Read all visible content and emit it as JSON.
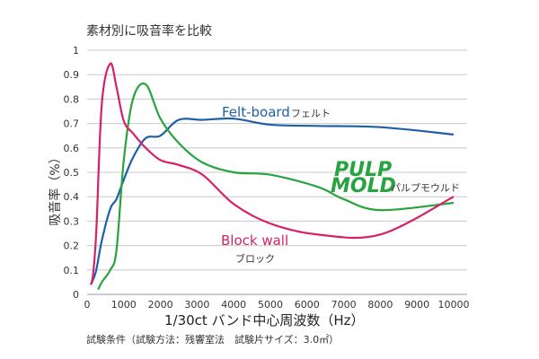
{
  "chart_data": {
    "type": "line",
    "title": "素材別に吸音率を比較",
    "xlabel": "1/30ct バンド中心周波数（Hz）",
    "ylabel": "吸音率（%）",
    "footnote": "試験条件（試験方法：残響室法　試験片サイズ：3.0㎡）",
    "xlim": [
      0,
      10000
    ],
    "ylim": [
      0,
      1
    ],
    "xticks": [
      "0",
      "1000",
      "2000",
      "3000",
      "4000",
      "5000",
      "6000",
      "7000",
      "8000",
      "9000",
      "10000"
    ],
    "yticks": [
      "0",
      "0.1",
      "0.2",
      "0.3",
      "0.4",
      "0.5",
      "0.6",
      "0.7",
      "0.8",
      "0.9",
      "1"
    ],
    "grid": true,
    "series": [
      {
        "name": "Felt-board",
        "name_ja": "フェルト",
        "color": "#1e5fa8",
        "x": [
          100,
          160,
          250,
          400,
          630,
          800,
          1000,
          1250,
          1600,
          2000,
          2500,
          3150,
          4000,
          5000,
          6300,
          8000,
          10000
        ],
        "y": [
          0.04,
          0.06,
          0.1,
          0.22,
          0.35,
          0.39,
          0.47,
          0.56,
          0.64,
          0.65,
          0.715,
          0.715,
          0.72,
          0.695,
          0.69,
          0.685,
          0.655
        ]
      },
      {
        "name": "PULP MOLD",
        "name_ja": "パルプモウルド",
        "color": "#27a33f",
        "x": [
          300,
          400,
          630,
          800,
          1000,
          1250,
          1600,
          2000,
          2500,
          3150,
          4000,
          5000,
          6300,
          7000,
          8000,
          10000
        ],
        "y": [
          0.02,
          0.05,
          0.1,
          0.18,
          0.55,
          0.8,
          0.86,
          0.72,
          0.62,
          0.54,
          0.5,
          0.49,
          0.44,
          0.39,
          0.345,
          0.375
        ]
      },
      {
        "name": "Block wall",
        "name_ja": "ブロック",
        "color": "#d6206c",
        "x": [
          100,
          160,
          250,
          400,
          630,
          800,
          1000,
          1250,
          1600,
          2000,
          2500,
          3150,
          4000,
          5000,
          6300,
          8000,
          10000
        ],
        "y": [
          0.04,
          0.08,
          0.26,
          0.78,
          0.945,
          0.85,
          0.71,
          0.66,
          0.6,
          0.55,
          0.53,
          0.49,
          0.37,
          0.29,
          0.245,
          0.245,
          0.4
        ]
      }
    ]
  }
}
